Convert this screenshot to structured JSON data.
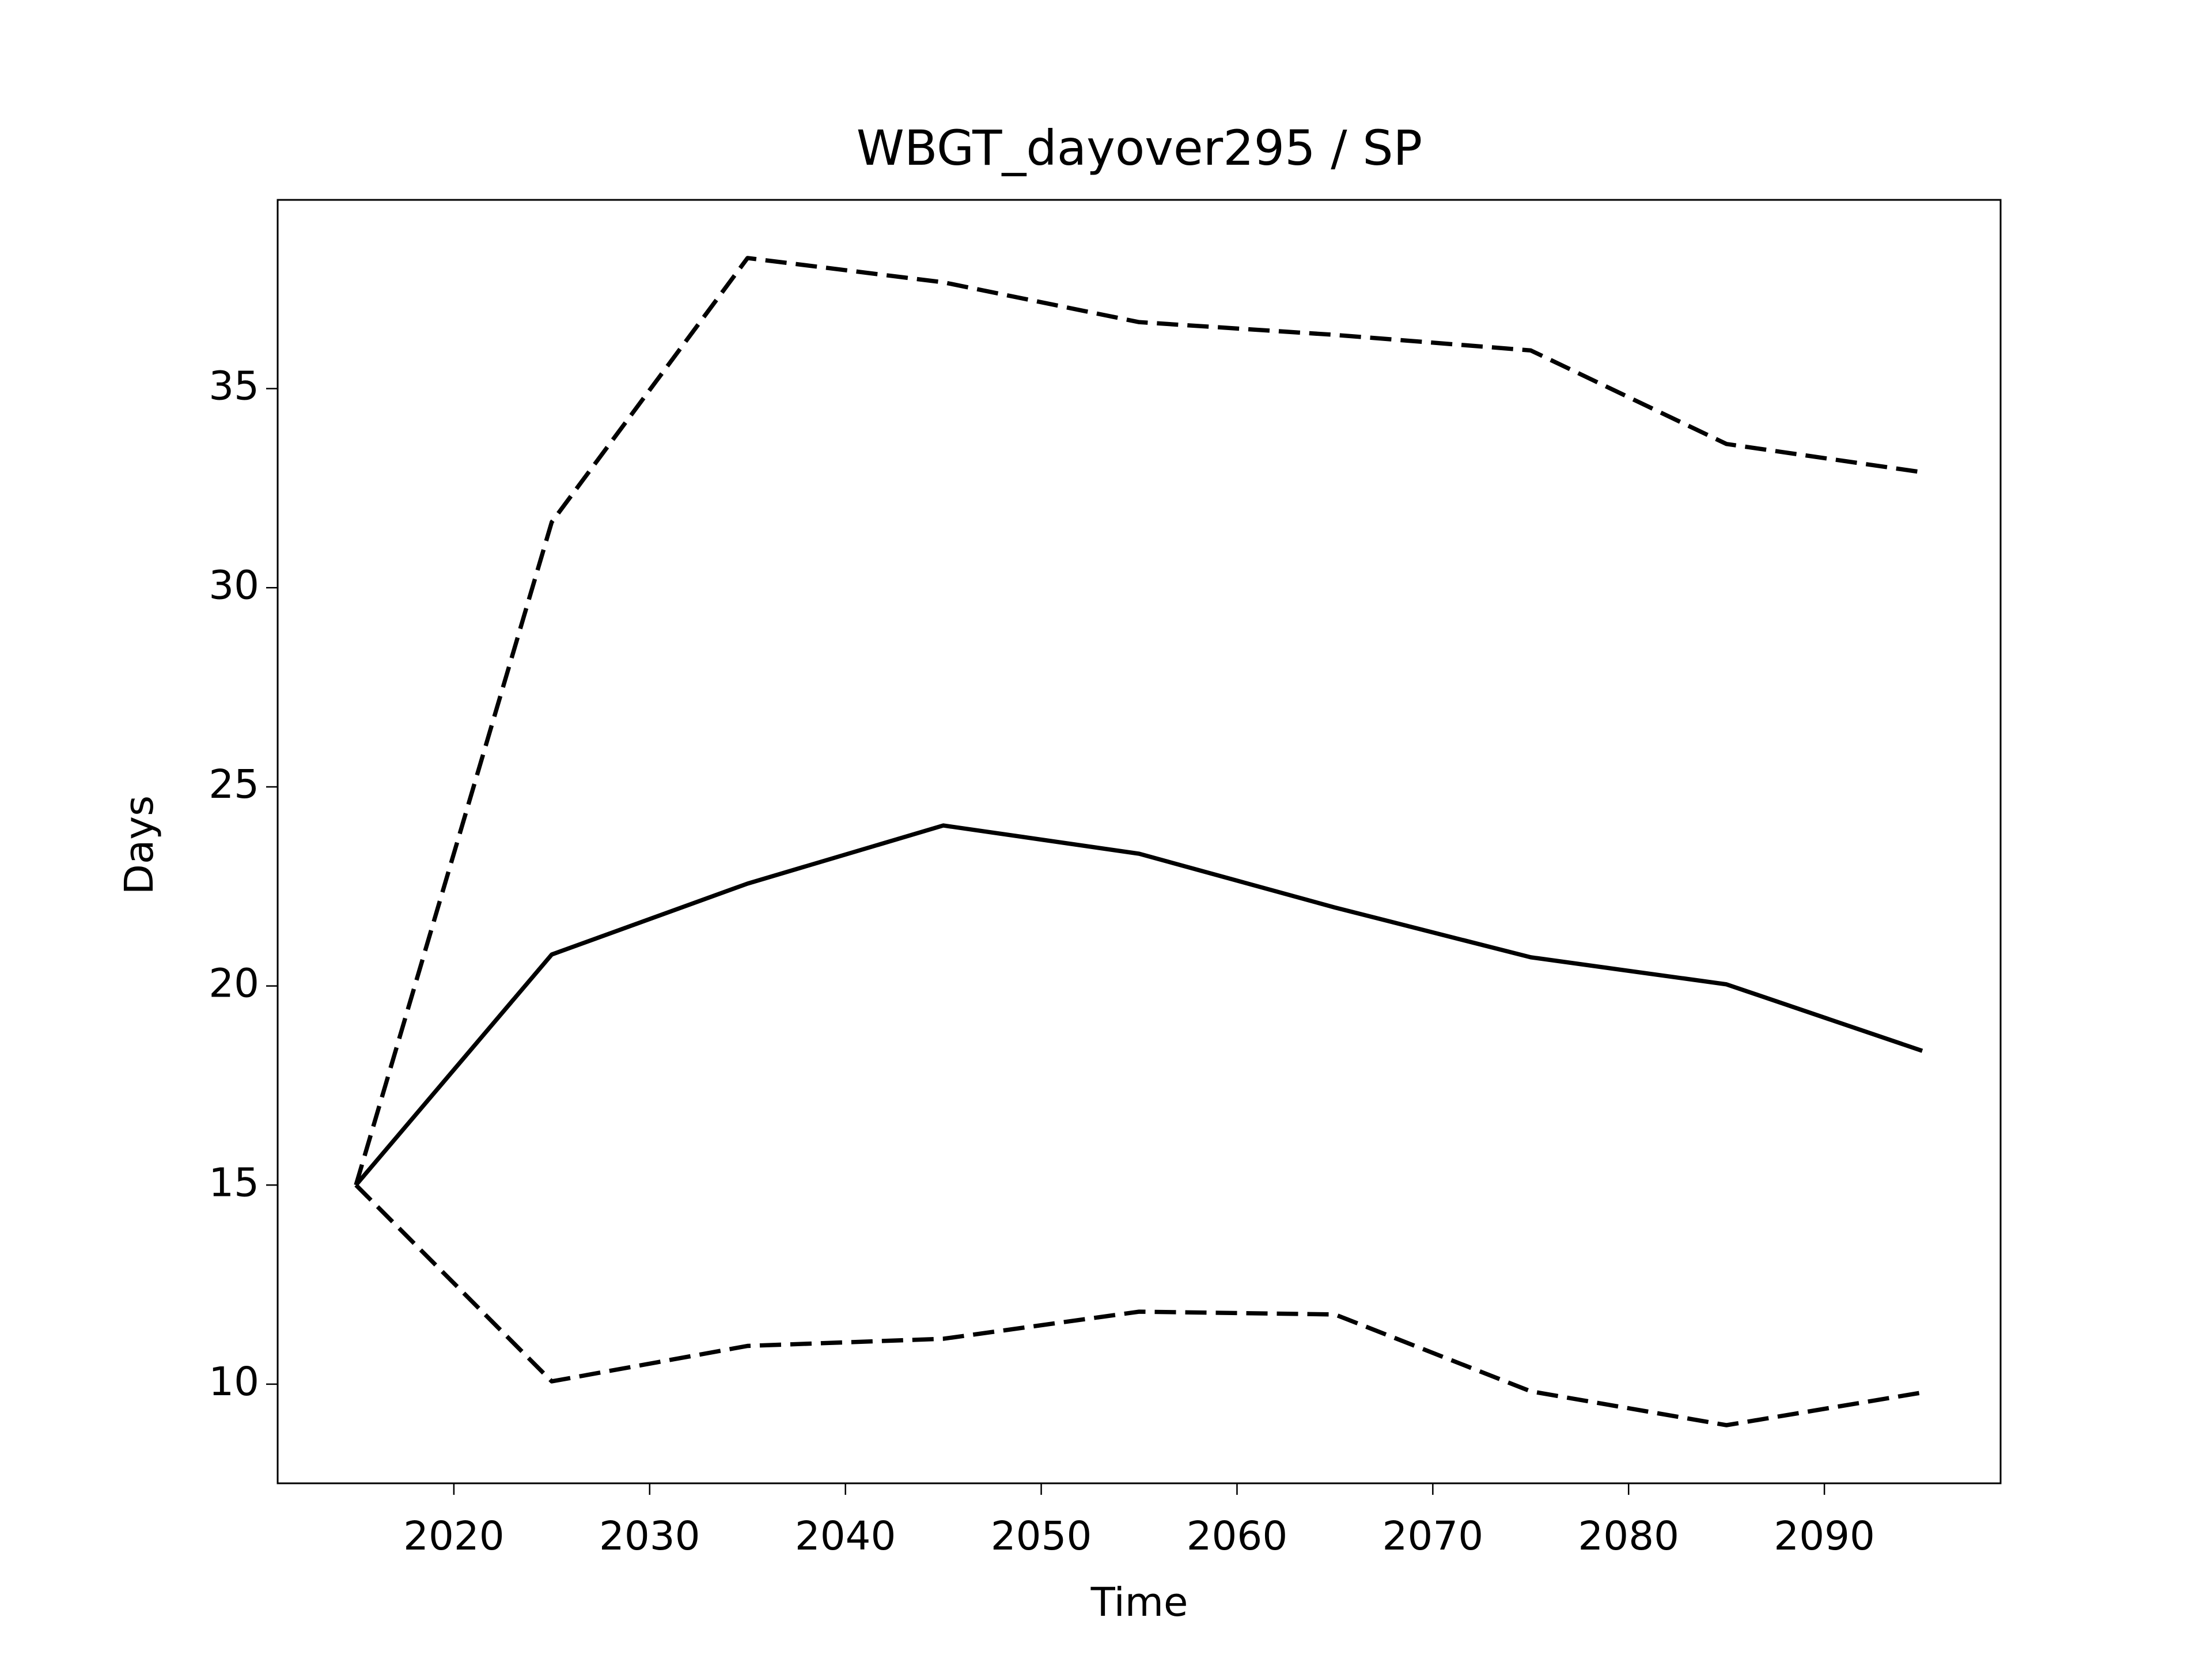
{
  "chart_data": {
    "type": "line",
    "title": "WBGT_dayover295 / SP",
    "xlabel": "Time",
    "ylabel": "Days",
    "x": [
      2015,
      2025,
      2035,
      2045,
      2055,
      2065,
      2075,
      2085,
      2095
    ],
    "series": [
      {
        "color": "#000000",
        "linestyle": "solid",
        "values": [
          15,
          20.79,
          22.57,
          24.03,
          23.32,
          21.97,
          20.72,
          20.04,
          18.37
        ]
      },
      {
        "color": "#000000",
        "linestyle": "dashed",
        "values": [
          15,
          31.65,
          38.28,
          37.67,
          36.67,
          36.35,
          35.96,
          33.61,
          32.9
        ]
      },
      {
        "color": "#000000",
        "linestyle": "dashed",
        "values": [
          15,
          10.07,
          10.96,
          11.14,
          11.82,
          11.75,
          9.82,
          8.97,
          9.79
        ]
      }
    ],
    "xlim": [
      2011,
      2099
    ],
    "xticks": [
      2020,
      2030,
      2040,
      2050,
      2060,
      2070,
      2080,
      2090
    ],
    "ylim": [
      7.51,
      39.74
    ],
    "yticks": [
      10,
      15,
      20,
      25,
      30,
      35
    ],
    "grid": false
  }
}
